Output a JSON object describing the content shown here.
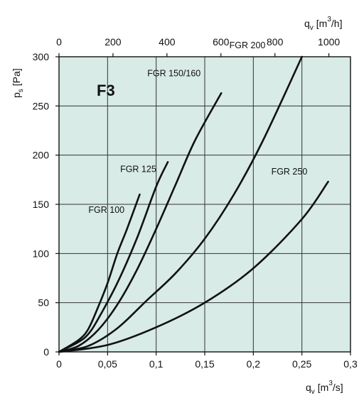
{
  "chart_data": {
    "type": "line",
    "title": "F3",
    "xlabel": "q",
    "xlabel_sub": "v",
    "xlabel_unit_pre": "[m",
    "xlabel_unit_sup": "3",
    "xlabel_unit_post": "/s]",
    "x2label": "q",
    "x2label_sub": "v",
    "x2label_unit_pre": "[m",
    "x2label_unit_sup": "3",
    "x2label_unit_post": "/h]",
    "ylabel": "p",
    "ylabel_sub": "s",
    "ylabel_unit": "[Pa]",
    "xlim": [
      0,
      0.3
    ],
    "ylim": [
      0,
      300
    ],
    "x_ticks": [
      "0",
      "0,05",
      "0,1",
      "0,15",
      "0,2",
      "0,25",
      "0,3"
    ],
    "x2_ticks": [
      "0",
      "200",
      "400",
      "600",
      "800",
      "1000"
    ],
    "y_ticks": [
      "0",
      "50",
      "100",
      "150",
      "200",
      "250",
      "300"
    ],
    "grid": true,
    "background_color": "#d8ebe6",
    "curve_color": "#111111",
    "series": [
      {
        "name": "FGR 100",
        "x": [
          0,
          0.02,
          0.03,
          0.04,
          0.05,
          0.06,
          0.07,
          0.083
        ],
        "y": [
          0,
          12,
          23,
          45,
          70,
          100,
          125,
          160
        ]
      },
      {
        "name": "FGR 125",
        "x": [
          0,
          0.02,
          0.03,
          0.04,
          0.06,
          0.08,
          0.1,
          0.112
        ],
        "y": [
          0,
          10,
          18,
          33,
          70,
          115,
          168,
          193
        ]
      },
      {
        "name": "FGR 150/160",
        "x": [
          0,
          0.02,
          0.04,
          0.06,
          0.08,
          0.1,
          0.12,
          0.14,
          0.167
        ],
        "y": [
          0,
          6,
          22,
          48,
          83,
          125,
          170,
          215,
          263
        ]
      },
      {
        "name": "FGR 200",
        "x": [
          0,
          0.03,
          0.06,
          0.09,
          0.12,
          0.15,
          0.18,
          0.21,
          0.25
        ],
        "y": [
          0,
          6,
          24,
          52,
          80,
          115,
          160,
          215,
          300
        ]
      },
      {
        "name": "FGR 250",
        "x": [
          0,
          0.05,
          0.1,
          0.15,
          0.2,
          0.25,
          0.277
        ],
        "y": [
          0,
          7,
          25,
          50,
          85,
          135,
          173
        ]
      }
    ]
  }
}
